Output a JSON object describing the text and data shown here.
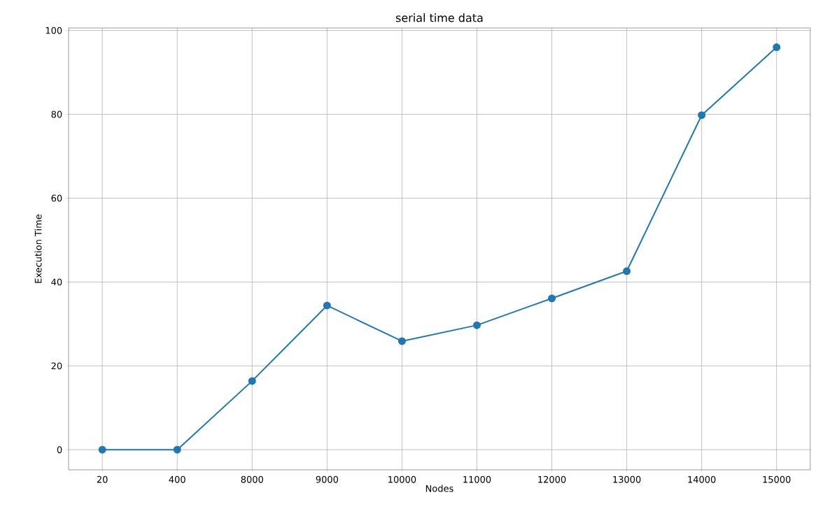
{
  "chart_data": {
    "type": "line",
    "title": "serial time data",
    "xlabel": "Nodes",
    "ylabel": "Execution Time",
    "categories": [
      "20",
      "400",
      "8000",
      "9000",
      "10000",
      "11000",
      "12000",
      "13000",
      "14000",
      "15000"
    ],
    "series": [
      {
        "color": "#1f77b4",
        "values": [
          0,
          0,
          16.4,
          34.4,
          25.9,
          29.7,
          36.1,
          42.6,
          79.8,
          96.0
        ]
      }
    ],
    "ylim": [
      -4.8,
      100.6
    ],
    "yticks": [
      0,
      20,
      40,
      60,
      80,
      100
    ],
    "grid": true,
    "marker": "circle",
    "line_style": "solid"
  }
}
